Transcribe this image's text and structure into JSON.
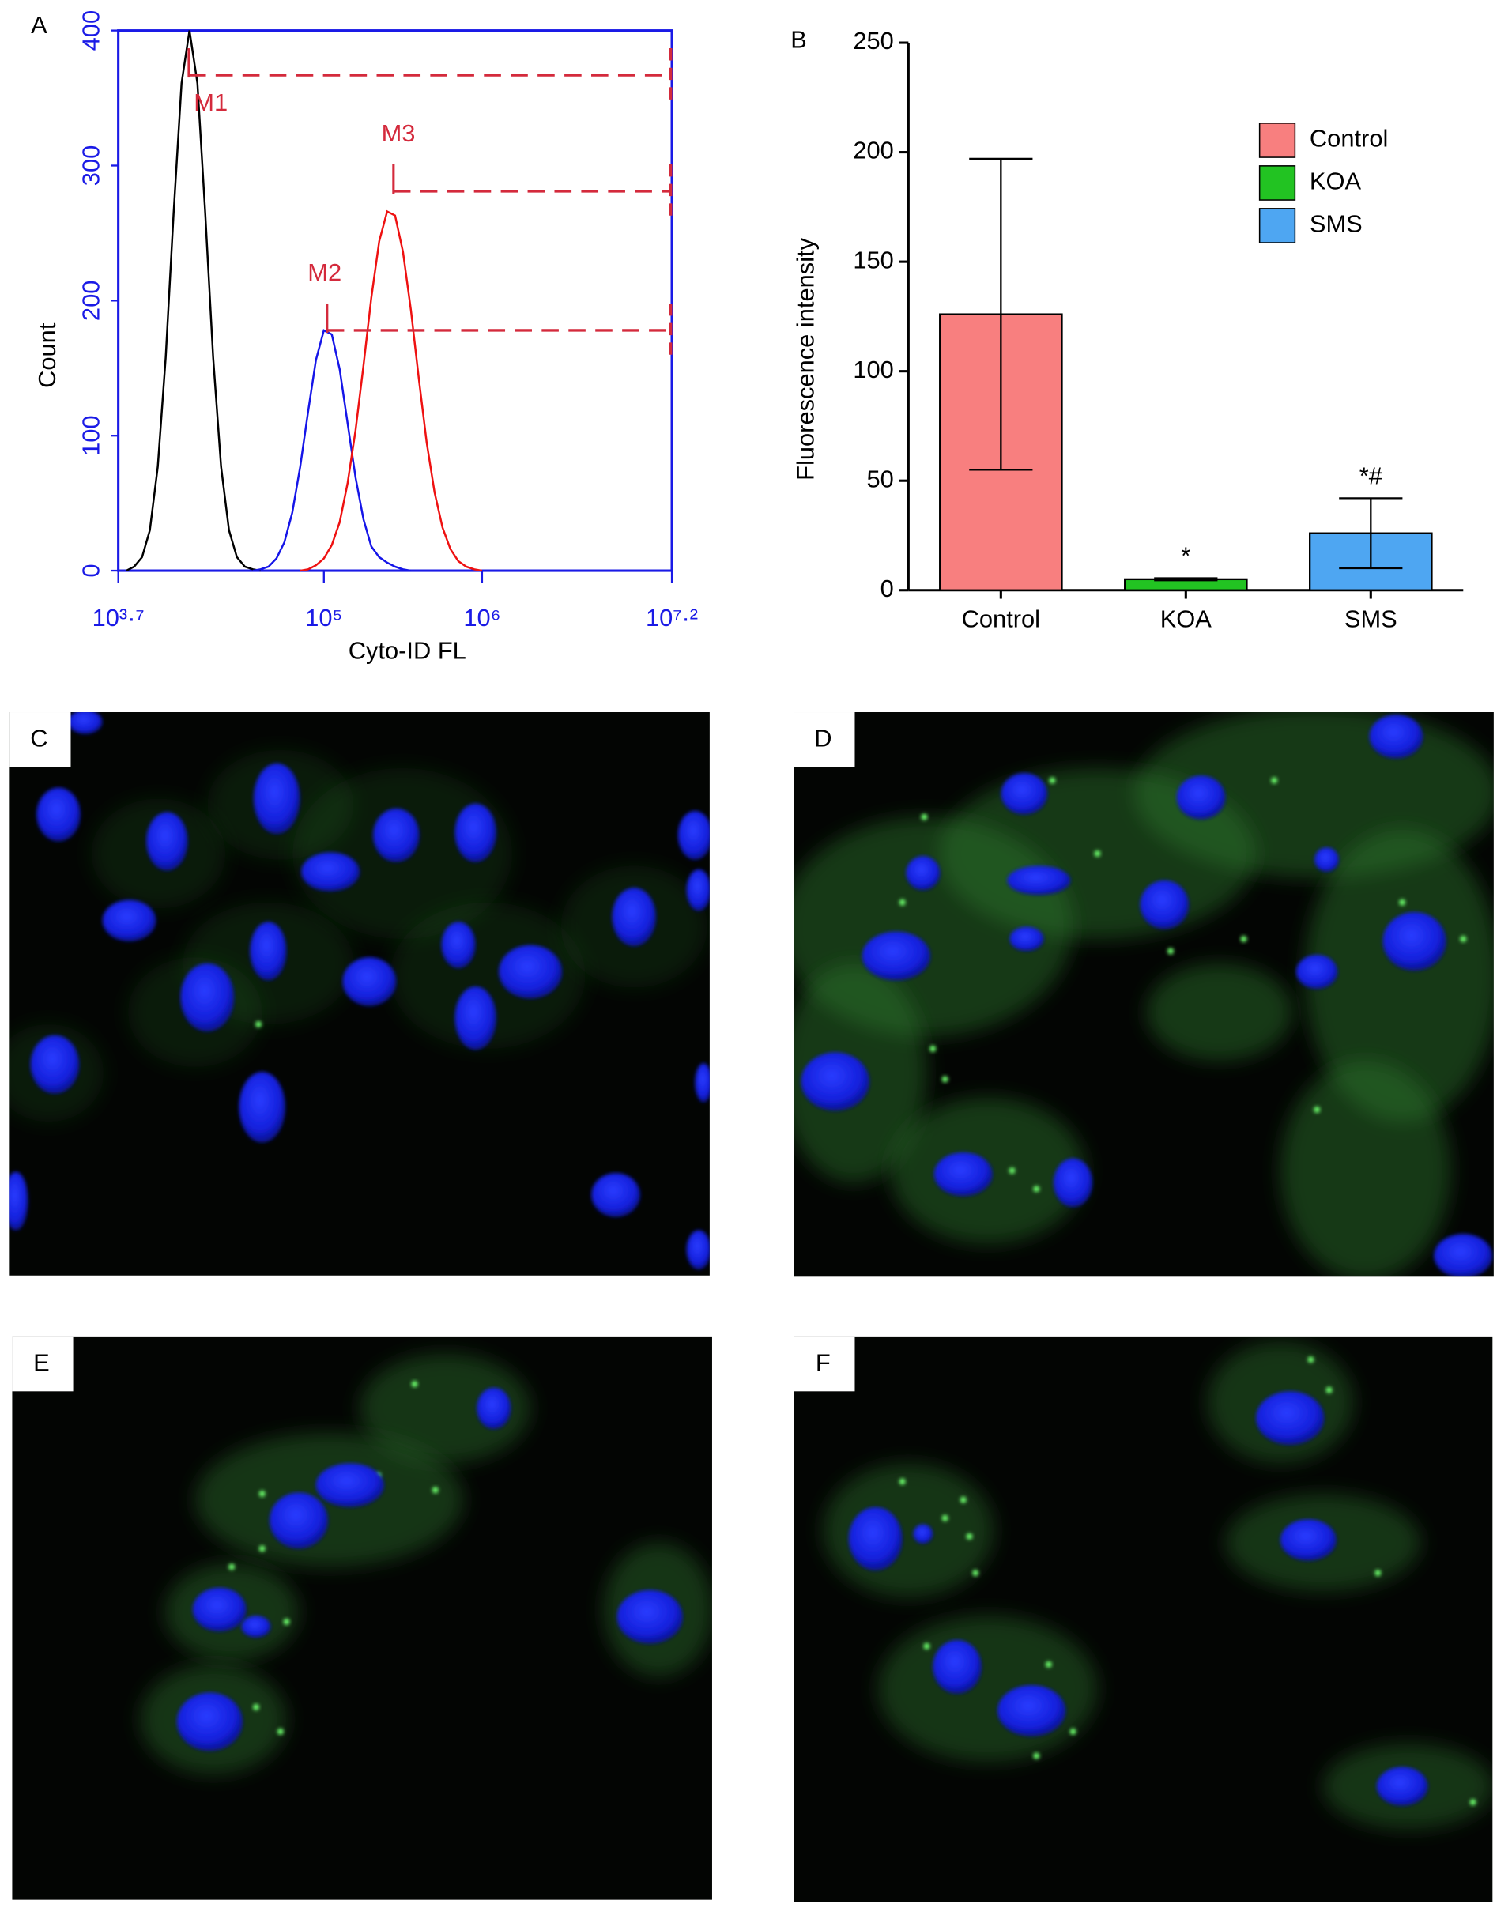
{
  "chart_data": [
    {
      "type": "line",
      "panel": "A",
      "xlabel": "Cyto-ID FL",
      "ylabel": "Count",
      "log_x": true,
      "axis_color": "#1a1ae6",
      "xlim": [
        5011.87,
        15848931.92
      ],
      "xticks": [
        {
          "value": 5011.87,
          "label": "10³·⁷"
        },
        {
          "value": 100000,
          "label": "10⁵"
        },
        {
          "value": 1000000,
          "label": "10⁶"
        },
        {
          "value": 15848931.92,
          "label": "10⁷·²"
        }
      ],
      "ylim": [
        0,
        400
      ],
      "yticks": [
        0,
        100,
        200,
        300,
        400
      ],
      "series": [
        {
          "color": "#000000",
          "x": [
            5623,
            6310,
            7079,
            7943,
            8913,
            10000,
            11220,
            12589,
            14125,
            15849,
            17783,
            19953,
            22387,
            25119,
            28184,
            31623,
            35481,
            39811
          ],
          "values": [
            0,
            3,
            10,
            30,
            77,
            158,
            265,
            361,
            400,
            361,
            265,
            158,
            77,
            30,
            10,
            3,
            1,
            0
          ]
        },
        {
          "color": "#1515e8",
          "x": [
            35481,
            39811,
            44668,
            50119,
            56234,
            63096,
            70795,
            79433,
            89125,
            100000,
            112202,
            125893,
            141254,
            158489,
            177828,
            199526,
            223872,
            251189,
            281838,
            316228,
            354813
          ],
          "values": [
            0,
            1,
            3,
            9,
            21,
            43,
            77,
            118,
            156,
            178,
            175,
            149,
            109,
            69,
            38,
            18,
            10,
            6,
            3,
            1,
            0
          ]
        },
        {
          "color": "#ee1111",
          "x": [
            70795,
            79433,
            89125,
            100000,
            112202,
            125893,
            141254,
            158489,
            177828,
            199526,
            223872,
            251189,
            281838,
            316228,
            354813,
            398107,
            446684,
            501187,
            562341,
            630957,
            707946,
            794328,
            891251,
            1000000
          ],
          "values": [
            0,
            1,
            4,
            9,
            19,
            36,
            65,
            104,
            152,
            202,
            244,
            266,
            263,
            236,
            193,
            142,
            95,
            58,
            32,
            16,
            7,
            3,
            1,
            0
          ]
        }
      ],
      "markers": [
        {
          "label": "M1",
          "start": 14000,
          "end": 15848931.92,
          "y": 367,
          "color": "#d42a3c"
        },
        {
          "label": "M2",
          "start": 104713,
          "end": 15848931.92,
          "y": 178,
          "color": "#d42a3c"
        },
        {
          "label": "M3",
          "start": 275423,
          "end": 15848931.92,
          "y": 281,
          "color": "#d42a3c"
        }
      ]
    },
    {
      "type": "bar",
      "panel": "B",
      "ylabel": "Fluorescence intensity",
      "categories": [
        "Control",
        "KOA",
        "SMS"
      ],
      "values": [
        126,
        5,
        26
      ],
      "errors": [
        71,
        0.5,
        16
      ],
      "annotations": [
        null,
        "*",
        "*#"
      ],
      "colors": [
        "#f87f7f",
        "#22c322",
        "#4ea6f2"
      ],
      "ylim": [
        0,
        250
      ],
      "yticks": [
        0,
        50,
        100,
        150,
        200,
        250
      ],
      "legend": "upper right"
    }
  ],
  "images": [
    {
      "label": "C"
    },
    {
      "label": "D"
    },
    {
      "label": "E"
    },
    {
      "label": "F"
    }
  ]
}
